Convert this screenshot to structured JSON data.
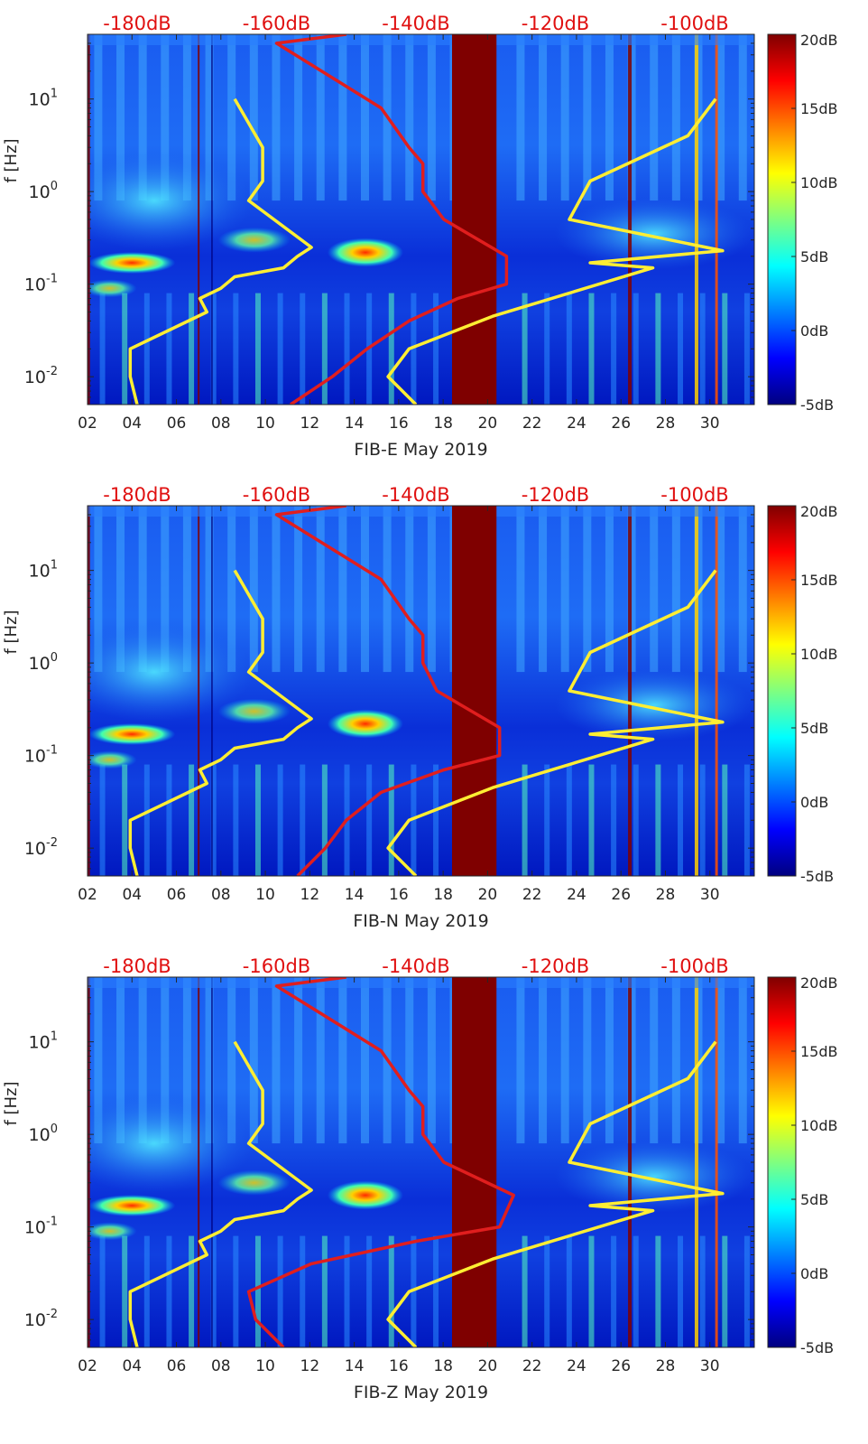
{
  "figure": {
    "colormap": [
      "#00007f",
      "#0000ff",
      "#007fff",
      "#00ffff",
      "#7fff7f",
      "#ffff00",
      "#ff7f00",
      "#ff0000",
      "#7f0000"
    ],
    "overlay_colors": {
      "psd": "#e01e1e",
      "noise_models": "#ffee33",
      "top_labels": "#e01010"
    }
  },
  "chart_data": [
    {
      "type": "heatmap",
      "title": "",
      "xlabel": "FIB-E May 2019",
      "ylabel": "f [Hz]",
      "x_tick_labels": [
        "02",
        "04",
        "06",
        "08",
        "10",
        "12",
        "14",
        "16",
        "18",
        "20",
        "22",
        "24",
        "26",
        "28",
        "30"
      ],
      "y_tick_labels": [
        "10^-2",
        "10^-1",
        "10^0",
        "10^1"
      ],
      "xlim": [
        2,
        32
      ],
      "ylim": [
        0.005,
        50
      ],
      "colorbar": {
        "range": [
          -5,
          20
        ],
        "tick_labels": [
          "20dB",
          "15dB",
          "10dB",
          "5dB",
          "0dB",
          "-5dB"
        ]
      },
      "top_axis_labels": [
        "-180dB",
        "-160dB",
        "-140dB",
        "-120dB",
        "-100dB"
      ],
      "data_gap_days": [
        18.4,
        20.4
      ],
      "psd_curve": {
        "name": "PSD (dB)",
        "db": [
          -158,
          -152,
          -147,
          -141,
          -134,
          -127,
          -127,
          -136,
          -139,
          -139,
          -141,
          -145,
          -160,
          -150
        ],
        "f": [
          0.005,
          0.01,
          0.02,
          0.04,
          0.07,
          0.1,
          0.2,
          0.5,
          1,
          2,
          3,
          8,
          40,
          50
        ]
      },
      "noise_low": {
        "name": "Low noise model (dB)",
        "db": [
          -180,
          -181,
          -181,
          -170,
          -171,
          -168,
          -166,
          -159,
          -157,
          -155,
          -164,
          -162,
          -162,
          -166
        ],
        "f": [
          0.005,
          0.01,
          0.02,
          0.05,
          0.07,
          0.09,
          0.12,
          0.15,
          0.2,
          0.25,
          0.8,
          1.3,
          3,
          10
        ]
      },
      "noise_high": {
        "name": "High noise model (dB)",
        "db": [
          -140,
          -144,
          -141,
          -129,
          -106,
          -115,
          -96,
          -118,
          -115,
          -101,
          -97
        ],
        "f": [
          0.005,
          0.01,
          0.02,
          0.045,
          0.15,
          0.17,
          0.23,
          0.5,
          1.3,
          4,
          10
        ]
      }
    },
    {
      "type": "heatmap",
      "title": "",
      "xlabel": "FIB-N May 2019",
      "ylabel": "f [Hz]",
      "x_tick_labels": [
        "02",
        "04",
        "06",
        "08",
        "10",
        "12",
        "14",
        "16",
        "18",
        "20",
        "22",
        "24",
        "26",
        "28",
        "30"
      ],
      "y_tick_labels": [
        "10^-2",
        "10^-1",
        "10^0",
        "10^1"
      ],
      "xlim": [
        2,
        32
      ],
      "ylim": [
        0.005,
        50
      ],
      "colorbar": {
        "range": [
          -5,
          20
        ],
        "tick_labels": [
          "20dB",
          "15dB",
          "10dB",
          "5dB",
          "0dB",
          "-5dB"
        ]
      },
      "top_axis_labels": [
        "-180dB",
        "-160dB",
        "-140dB",
        "-120dB",
        "-100dB"
      ],
      "data_gap_days": [
        18.4,
        20.4
      ],
      "psd_curve": {
        "name": "PSD (dB)",
        "db": [
          -157,
          -153,
          -150,
          -145,
          -136,
          -128,
          -128,
          -137,
          -139,
          -139,
          -141,
          -145,
          -160,
          -150
        ],
        "f": [
          0.005,
          0.01,
          0.02,
          0.04,
          0.07,
          0.1,
          0.2,
          0.5,
          1,
          2,
          3,
          8,
          40,
          50
        ]
      },
      "noise_low": {
        "name": "Low noise model (dB)",
        "db": [
          -180,
          -181,
          -181,
          -170,
          -171,
          -168,
          -166,
          -159,
          -157,
          -155,
          -164,
          -162,
          -162,
          -166
        ],
        "f": [
          0.005,
          0.01,
          0.02,
          0.05,
          0.07,
          0.09,
          0.12,
          0.15,
          0.2,
          0.25,
          0.8,
          1.3,
          3,
          10
        ]
      },
      "noise_high": {
        "name": "High noise model (dB)",
        "db": [
          -140,
          -144,
          -141,
          -129,
          -106,
          -115,
          -96,
          -118,
          -115,
          -101,
          -97
        ],
        "f": [
          0.005,
          0.01,
          0.02,
          0.045,
          0.15,
          0.17,
          0.23,
          0.5,
          1.3,
          4,
          10
        ]
      }
    },
    {
      "type": "heatmap",
      "title": "",
      "xlabel": "FIB-Z May 2019",
      "ylabel": "f [Hz]",
      "x_tick_labels": [
        "02",
        "04",
        "06",
        "08",
        "10",
        "12",
        "14",
        "16",
        "18",
        "20",
        "22",
        "24",
        "26",
        "28",
        "30"
      ],
      "y_tick_labels": [
        "10^-2",
        "10^-1",
        "10^0",
        "10^1"
      ],
      "xlim": [
        2,
        32
      ],
      "ylim": [
        0.005,
        50
      ],
      "colorbar": {
        "range": [
          -5,
          20
        ],
        "tick_labels": [
          "20dB",
          "15dB",
          "10dB",
          "5dB",
          "0dB",
          "-5dB"
        ]
      },
      "top_axis_labels": [
        "-180dB",
        "-160dB",
        "-140dB",
        "-120dB",
        "-100dB"
      ],
      "data_gap_days": [
        18.4,
        20.4
      ],
      "psd_curve": {
        "name": "PSD (dB)",
        "db": [
          -159,
          -163,
          -164,
          -155,
          -140,
          -128,
          -126,
          -136,
          -139,
          -139,
          -141,
          -145,
          -160,
          -150
        ],
        "f": [
          0.005,
          0.01,
          0.02,
          0.04,
          0.07,
          0.1,
          0.22,
          0.5,
          1,
          2,
          3,
          8,
          40,
          50
        ]
      },
      "noise_low": {
        "name": "Low noise model (dB)",
        "db": [
          -180,
          -181,
          -181,
          -170,
          -171,
          -168,
          -166,
          -159,
          -157,
          -155,
          -164,
          -162,
          -162,
          -166
        ],
        "f": [
          0.005,
          0.01,
          0.02,
          0.05,
          0.07,
          0.09,
          0.12,
          0.15,
          0.2,
          0.25,
          0.8,
          1.3,
          3,
          10
        ]
      },
      "noise_high": {
        "name": "High noise model (dB)",
        "db": [
          -140,
          -144,
          -141,
          -129,
          -106,
          -115,
          -96,
          -118,
          -115,
          -101,
          -97
        ],
        "f": [
          0.005,
          0.01,
          0.02,
          0.045,
          0.15,
          0.17,
          0.23,
          0.5,
          1.3,
          4,
          10
        ]
      }
    }
  ]
}
